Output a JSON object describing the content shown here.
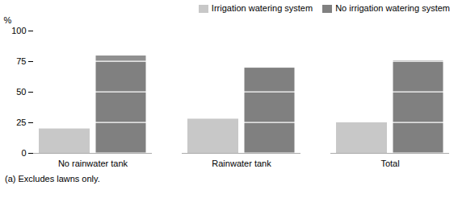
{
  "chart_data": {
    "type": "bar",
    "categories": [
      "No rainwater tank",
      "Rainwater tank",
      "Total"
    ],
    "series": [
      {
        "name": "Irrigation watering system",
        "color": "#c8c8c8",
        "values": [
          20,
          28,
          25
        ]
      },
      {
        "name": "No irrigation watering system",
        "color": "#808080",
        "segments": [
          {
            "values": [
              25,
              25,
              25
            ]
          },
          {
            "values": [
              25,
              25,
              25
            ]
          },
          {
            "values": [
              25,
              20,
              25
            ]
          },
          {
            "values": [
              5,
              0,
              1
            ],
            "color": "#909090"
          }
        ]
      }
    ],
    "stacked": true,
    "ylabel": "%",
    "ylim": [
      0,
      100
    ],
    "yticks": [
      0,
      25,
      50,
      75,
      100
    ],
    "grid": false,
    "legend": "upper right",
    "footnote": "(a) Excludes lawns only."
  }
}
